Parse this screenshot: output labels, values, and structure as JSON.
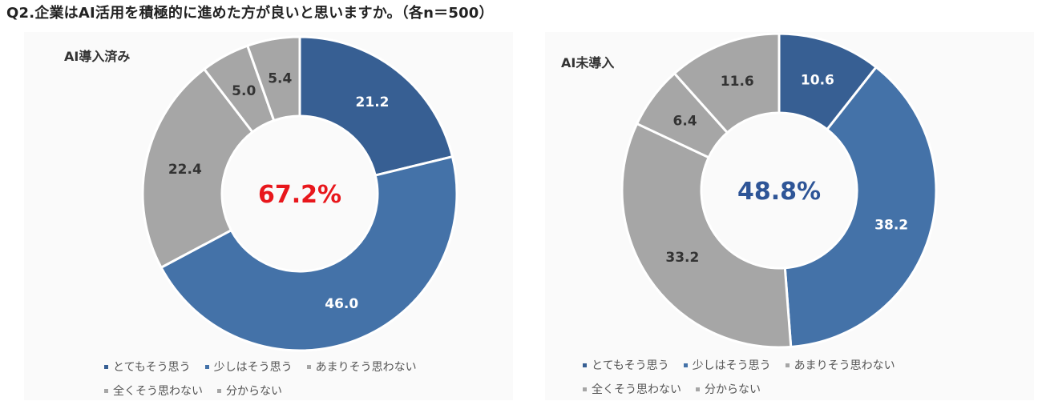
{
  "heading": "Q2.企業はAI活用を積極的に進めた方が良いと思いますか。（各n＝500）",
  "legend_labels": [
    "とてもそう思う",
    "少しはそう思う",
    "あまりそう思わない",
    "全くそう思わない",
    "分からない"
  ],
  "colors": {
    "very_much": "#375F93",
    "somewhat": "#4472A8",
    "not_really": "#A6A6A6",
    "not_at_all": "#A6A6A6",
    "dont_know": "#A6A6A6",
    "center_left": "#E8171C",
    "center_right": "#2E5597",
    "label_on_blue": "#FFFFFF",
    "label_on_gray": "#333333"
  },
  "chart_data": [
    {
      "type": "pie",
      "donut": true,
      "title": "AI導入済み",
      "center_label": "67.2%",
      "categories": [
        "とてもそう思う",
        "少しはそう思う",
        "あまりそう思わない",
        "全くそう思わない",
        "分からない"
      ],
      "values": [
        21.2,
        46.0,
        22.4,
        5.0,
        5.4
      ],
      "value_labels": [
        "21.2",
        "46.0",
        "22.4",
        "5.0",
        "5.4"
      ]
    },
    {
      "type": "pie",
      "donut": true,
      "title": "AI未導入",
      "center_label": "48.8%",
      "categories": [
        "とてもそう思う",
        "少しはそう思う",
        "あまりそう思わない",
        "全くそう思わない",
        "分からない"
      ],
      "values": [
        10.6,
        38.2,
        33.2,
        6.4,
        11.6
      ],
      "value_labels": [
        "10.6",
        "38.2",
        "33.2",
        "6.4",
        "11.6"
      ]
    }
  ]
}
